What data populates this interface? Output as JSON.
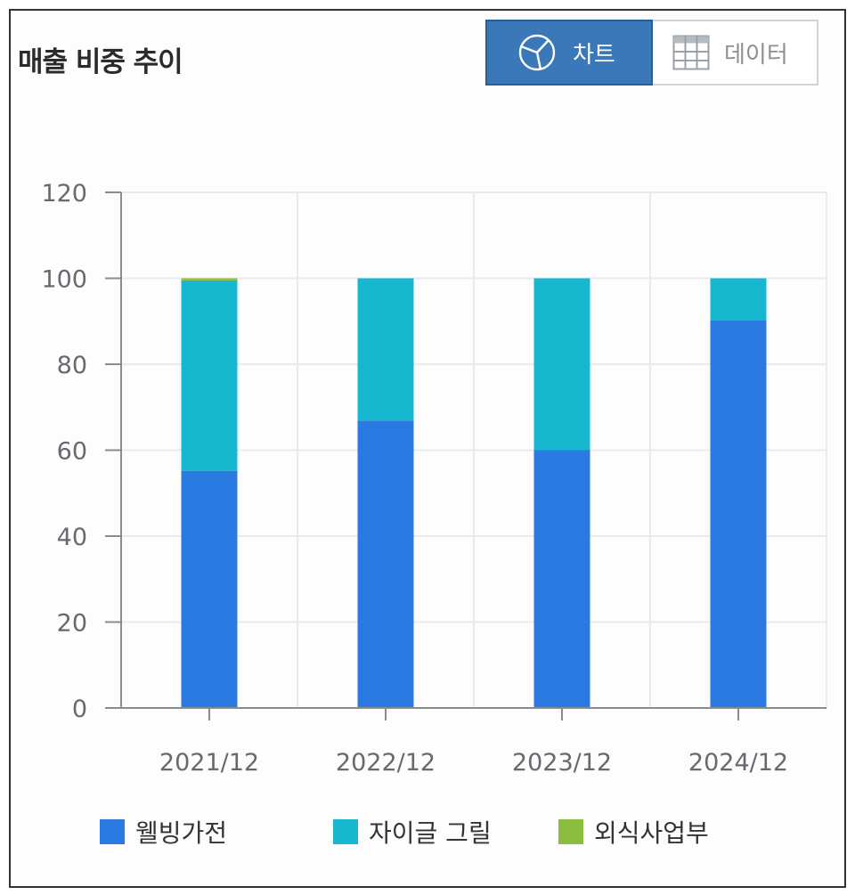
{
  "panel": {
    "title": "매출 비중 추이",
    "toggle": {
      "chart_label": "차트",
      "chart_icon": "pie-chart-icon",
      "data_label": "데이터",
      "data_icon": "table-grid-icon",
      "selected": "chart"
    }
  },
  "colors": {
    "accent": "#3a78b9",
    "series": [
      "#2a7ae2",
      "#17b7d0",
      "#8bbd3f"
    ]
  },
  "chart_data": {
    "type": "bar",
    "stacked": true,
    "title": "매출 비중 추이",
    "xlabel": "",
    "ylabel": "",
    "categories": [
      "2021/12",
      "2022/12",
      "2023/12",
      "2024/12"
    ],
    "ylim": [
      0,
      120
    ],
    "yticks": [
      0,
      20,
      40,
      60,
      80,
      100,
      120
    ],
    "grid": true,
    "legend_position": "bottom",
    "series": [
      {
        "name": "웰빙가전",
        "color": "#2a7ae2",
        "values": [
          55.2,
          66.9,
          60.0,
          90.3
        ]
      },
      {
        "name": "자이글 그릴",
        "color": "#17b7d0",
        "values": [
          44.3,
          33.1,
          40.0,
          9.7
        ]
      },
      {
        "name": "외식사업부",
        "color": "#8bbd3f",
        "values": [
          0.5,
          0.0,
          0.0,
          0.0
        ]
      }
    ]
  }
}
